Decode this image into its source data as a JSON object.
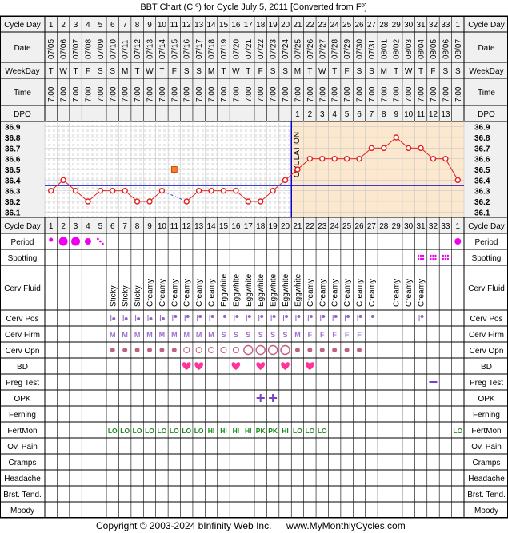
{
  "header": {
    "title": "BBT Chart (C º) for Cycle July 5, 2011  [Converted from Fº]"
  },
  "footer": {
    "copyright": "Copyright © 2003-2024 bInfinity Web Inc.",
    "website": "www.MyMonthlyCycles.com"
  },
  "row_labels": {
    "cycle_day": "Cycle Day",
    "date": "Date",
    "weekday": "WeekDay",
    "time": "Time",
    "dpo": "DPO",
    "cycle_day_bottom": "Cycle Day",
    "period": "Period",
    "spotting": "Spotting",
    "cerv_fluid": "Cerv Fluid",
    "cerv_pos": "Cerv Pos",
    "cerv_firm": "Cerv Firm",
    "cerv_opn": "Cerv Opn",
    "bd": "BD",
    "preg_test": "Preg Test",
    "opk": "OPK",
    "ferning": "Ferning",
    "fertmon": "FertMon",
    "ov_pain": "Ov. Pain",
    "cramps": "Cramps",
    "headache": "Headache",
    "brst_tend": "Brst. Tend.",
    "moody": "Moody"
  },
  "cycle_days": [
    "1",
    "2",
    "3",
    "4",
    "5",
    "6",
    "7",
    "8",
    "9",
    "10",
    "11",
    "12",
    "13",
    "14",
    "15",
    "16",
    "17",
    "18",
    "19",
    "20",
    "21",
    "22",
    "23",
    "24",
    "25",
    "26",
    "27",
    "28",
    "29",
    "30",
    "31",
    "32",
    "33",
    "1"
  ],
  "dates": [
    "07/05",
    "07/06",
    "07/07",
    "07/08",
    "07/09",
    "07/10",
    "07/11",
    "07/12",
    "07/13",
    "07/14",
    "07/15",
    "07/16",
    "07/17",
    "07/18",
    "07/19",
    "07/20",
    "07/21",
    "07/22",
    "07/23",
    "07/24",
    "07/25",
    "07/26",
    "07/27",
    "07/28",
    "07/29",
    "07/30",
    "07/31",
    "08/01",
    "08/02",
    "08/03",
    "08/04",
    "08/05",
    "08/06",
    "08/07"
  ],
  "weekdays": [
    "T",
    "W",
    "T",
    "F",
    "S",
    "S",
    "M",
    "T",
    "W",
    "T",
    "F",
    "S",
    "S",
    "M",
    "T",
    "W",
    "T",
    "F",
    "S",
    "S",
    "M",
    "T",
    "W",
    "T",
    "F",
    "S",
    "S",
    "M",
    "T",
    "W",
    "T",
    "F",
    "S",
    "S"
  ],
  "time": "7:00",
  "dpo": [
    "",
    "",
    "",
    "",
    "",
    "",
    "",
    "",
    "",
    "",
    "",
    "",
    "",
    "",
    "",
    "",
    "",
    "",
    "",
    "",
    "1",
    "2",
    "3",
    "4",
    "5",
    "6",
    "7",
    "8",
    "9",
    "10",
    "11",
    "12",
    "13",
    ""
  ],
  "chart_data": {
    "type": "line",
    "xlabel": "Cycle Day",
    "ylabel": "BBT (C º)",
    "ylim": [
      36.05,
      36.95
    ],
    "y_ticks": [
      "36.9",
      "36.8",
      "36.7",
      "36.6",
      "36.5",
      "36.4",
      "36.3",
      "36.2",
      "36.1"
    ],
    "ovulation_label": "OVULATION",
    "ovulation_after_day": 20,
    "coverline": 36.35,
    "temps": [
      36.3,
      36.4,
      36.3,
      36.2,
      36.3,
      36.3,
      36.3,
      36.2,
      36.2,
      36.3,
      null,
      36.2,
      36.3,
      36.3,
      36.3,
      36.3,
      36.2,
      36.2,
      36.3,
      36.4,
      36.5,
      36.6,
      36.6,
      36.6,
      36.6,
      36.6,
      36.7,
      36.7,
      36.8,
      36.7,
      36.7,
      36.6,
      36.6,
      36.4
    ],
    "discarded": {
      "day": 11,
      "value": 36.5
    },
    "bridge": {
      "from_day": 10,
      "to_day": 12
    }
  },
  "period": [
    "dot-sm",
    "dot-lg",
    "dot-lg",
    "dot-md",
    "dots",
    "",
    "",
    "",
    "",
    "",
    "",
    "",
    "",
    "",
    "",
    "",
    "",
    "",
    "",
    "",
    "",
    "",
    "",
    "",
    "",
    "",
    "",
    "",
    "",
    "",
    "",
    "",
    "",
    "dot-md"
  ],
  "spotting": [
    "",
    "",
    "",
    "",
    "",
    "",
    "",
    "",
    "",
    "",
    "",
    "",
    "",
    "",
    "",
    "",
    "",
    "",
    "",
    "",
    "",
    "",
    "",
    "",
    "",
    "",
    "",
    "",
    "",
    "",
    "grid",
    "grid",
    "grid",
    ""
  ],
  "cerv_fluid": [
    "",
    "",
    "",
    "",
    "",
    "Sticky",
    "Sticky",
    "Sticky",
    "Creamy",
    "Creamy",
    "Creamy",
    "Creamy",
    "Creamy",
    "Creamy",
    "Eggwhite",
    "Eggwhite",
    "Eggwhite",
    "Eggwhite",
    "Eggwhite",
    "Eggwhite",
    "Eggwhite",
    "Creamy",
    "Creamy",
    "Creamy",
    "Creamy",
    "Creamy",
    "Creamy",
    "",
    "Creamy",
    "Creamy",
    "Creamy",
    "",
    "",
    ""
  ],
  "cerv_pos": [
    "",
    "",
    "",
    "",
    "",
    "low",
    "low",
    "low",
    "low",
    "low",
    "mid",
    "mid",
    "mid",
    "mid",
    "mid",
    "mid",
    "mid",
    "mid",
    "mid",
    "mid",
    "mid",
    "mid",
    "mid",
    "mid",
    "mid",
    "mid",
    "mid",
    "",
    "",
    "",
    "mid",
    "",
    "",
    ""
  ],
  "cerv_firm": [
    "",
    "",
    "",
    "",
    "",
    "M",
    "M",
    "M",
    "M",
    "M",
    "M",
    "M",
    "M",
    "M",
    "S",
    "S",
    "S",
    "S",
    "S",
    "S",
    "M",
    "F",
    "F",
    "F",
    "F",
    "F",
    "",
    "",
    "",
    "",
    "",
    "",
    "",
    ""
  ],
  "cerv_opn": [
    "",
    "",
    "",
    "",
    "",
    "dot",
    "dot",
    "dot",
    "dot",
    "dot",
    "dot",
    "open",
    "open",
    "open",
    "open",
    "open",
    "big",
    "big",
    "big",
    "big",
    "dot",
    "dot",
    "dot",
    "dot",
    "dot",
    "dot",
    "",
    "",
    "",
    "",
    "",
    "",
    "",
    ""
  ],
  "bd": [
    "",
    "",
    "",
    "",
    "",
    "",
    "",
    "",
    "",
    "",
    "",
    "heart",
    "heart",
    "",
    "",
    "heart",
    "",
    "heart",
    "",
    "heart",
    "",
    "heart",
    "",
    "",
    "",
    "",
    "",
    "",
    "",
    "",
    "",
    "",
    "",
    ""
  ],
  "preg_test": [
    "",
    "",
    "",
    "",
    "",
    "",
    "",
    "",
    "",
    "",
    "",
    "",
    "",
    "",
    "",
    "",
    "",
    "",
    "",
    "",
    "",
    "",
    "",
    "",
    "",
    "",
    "",
    "",
    "",
    "",
    "",
    "neg",
    "",
    ""
  ],
  "opk": [
    "",
    "",
    "",
    "",
    "",
    "",
    "",
    "",
    "",
    "",
    "",
    "",
    "",
    "",
    "",
    "",
    "",
    "+",
    "+",
    "",
    "",
    "",
    "",
    "",
    "",
    "",
    "",
    "",
    "",
    "",
    "",
    "",
    "",
    ""
  ],
  "fertmon": [
    "",
    "",
    "",
    "",
    "",
    "LO",
    "LO",
    "LO",
    "LO",
    "LO",
    "LO",
    "LO",
    "LO",
    "HI",
    "HI",
    "HI",
    "HI",
    "PK",
    "PK",
    "HI",
    "LO",
    "LO",
    "LO",
    "",
    "",
    "",
    "",
    "",
    "",
    "",
    "",
    "",
    "",
    "LO"
  ]
}
